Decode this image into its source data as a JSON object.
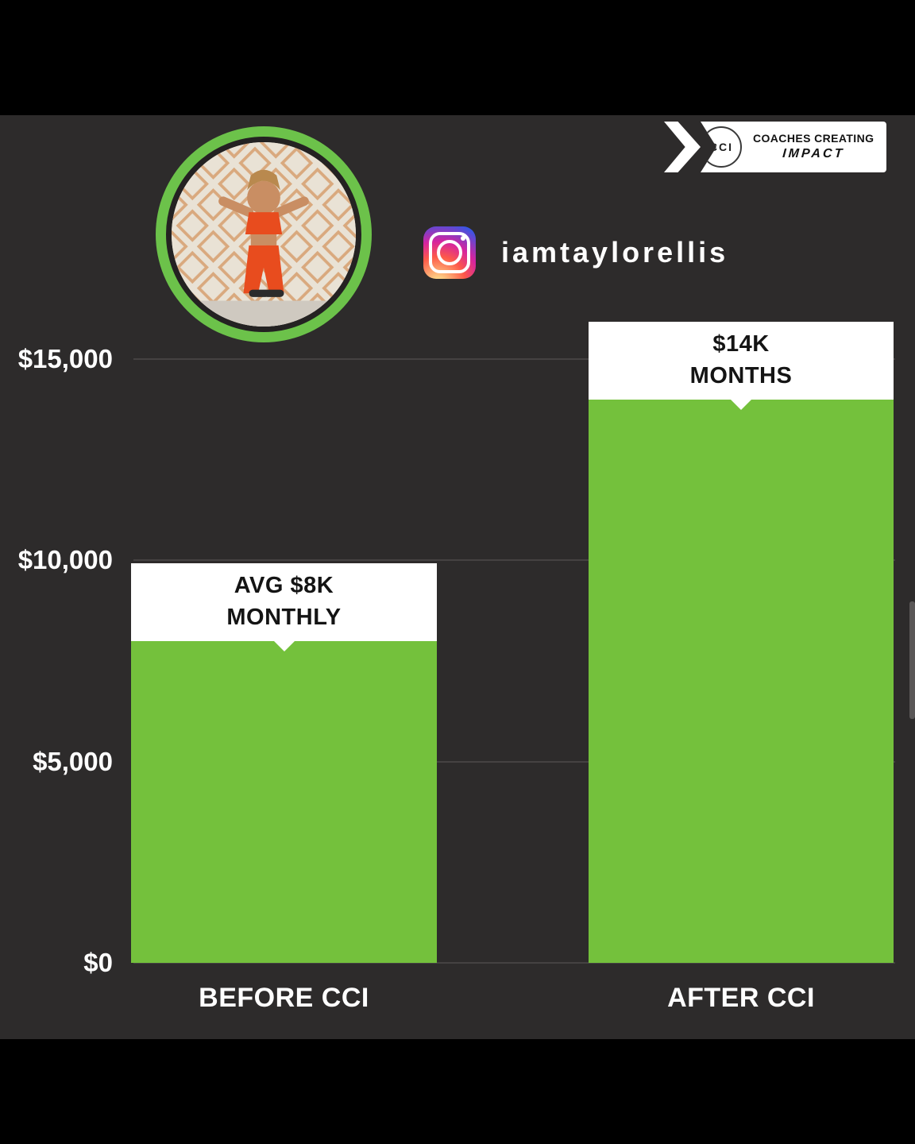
{
  "header": {
    "instagram_handle": "iamtaylorellis"
  },
  "badge": {
    "logo_text": "CCI",
    "line1": "COACHES CREATING",
    "line2": "IMPACT"
  },
  "chart_data": {
    "type": "bar",
    "title": "",
    "categories": [
      "BEFORE CCI",
      "AFTER CCI"
    ],
    "values": [
      8000,
      14000
    ],
    "bar_labels": [
      [
        "AVG $8K",
        "MONTHLY"
      ],
      [
        "$14K",
        "MONTHS"
      ]
    ],
    "y_ticks": [
      {
        "value": 15000,
        "label": "$15,000"
      },
      {
        "value": 10000,
        "label": "$10,000"
      },
      {
        "value": 5000,
        "label": "$5,000"
      },
      {
        "value": 0,
        "label": "$0"
      }
    ],
    "ylim": [
      0,
      15000
    ],
    "grid": true,
    "legend": "none",
    "bar_color": "#74c13c",
    "label_box_color": "#ffffff",
    "background_color": "#2d2b2b",
    "text_color": "#ffffff"
  }
}
